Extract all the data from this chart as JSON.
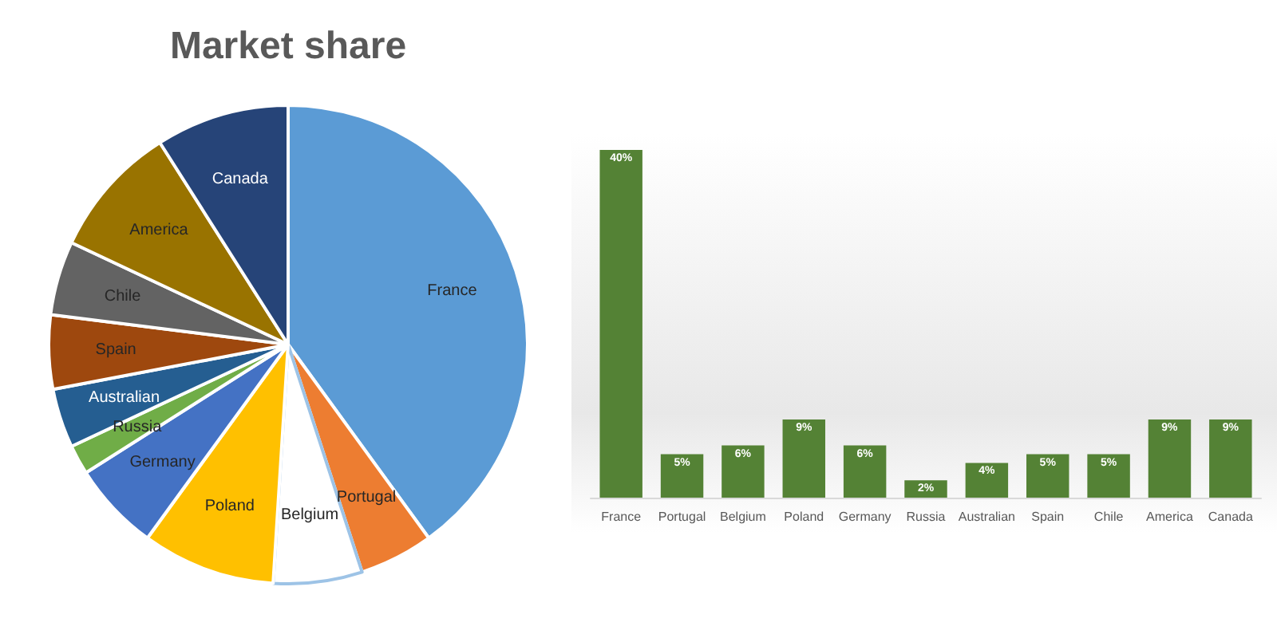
{
  "chart_data": [
    {
      "type": "pie",
      "title": "Market share",
      "categories": [
        "France",
        "Portugal",
        "Belgium",
        "Poland",
        "Germany",
        "Russia",
        "Australian",
        "Spain",
        "Chile",
        "America",
        "Canada"
      ],
      "values": [
        40,
        5,
        6,
        9,
        6,
        2,
        4,
        5,
        5,
        9,
        9
      ],
      "colors": [
        "#5b9bd5",
        "#ed7d31",
        "#ffffff",
        "#ffc000",
        "#4472c4",
        "#70ad47",
        "#255e91",
        "#9e480e",
        "#636363",
        "#997300",
        "#264478"
      ],
      "legend": false
    },
    {
      "type": "bar",
      "categories": [
        "France",
        "Portugal",
        "Belgium",
        "Poland",
        "Germany",
        "Russia",
        "Australian",
        "Spain",
        "Chile",
        "America",
        "Canada"
      ],
      "values": [
        40,
        5,
        6,
        9,
        6,
        2,
        4,
        5,
        5,
        9,
        9
      ],
      "value_labels": [
        "40%",
        "5%",
        "6%",
        "9%",
        "6%",
        "2%",
        "4%",
        "5%",
        "5%",
        "9%",
        "9%"
      ],
      "color": "#548235",
      "legend": false,
      "tick_labels": "x"
    }
  ]
}
